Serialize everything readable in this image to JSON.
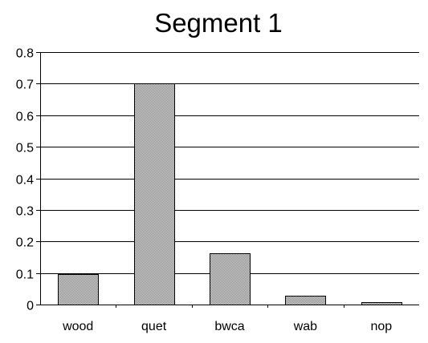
{
  "colors": {
    "bar_fill": "#bcbcbc",
    "bar_stroke": "#000000",
    "grid": "#000000",
    "background": "#ffffff"
  },
  "chart_data": {
    "type": "bar",
    "title": "Segment 1",
    "xlabel": "",
    "ylabel": "",
    "categories": [
      "wood",
      "quet",
      "bwca",
      "wab",
      "nop"
    ],
    "values": [
      0.096,
      0.702,
      0.163,
      0.028,
      0.008
    ],
    "ylim": [
      0,
      0.8
    ],
    "yticks": [
      0,
      0.1,
      0.2,
      0.3,
      0.4,
      0.5,
      0.6,
      0.7,
      0.8
    ],
    "ytick_labels": [
      "0",
      "0.1",
      "0.2",
      "0.3",
      "0.4",
      "0.5",
      "0.6",
      "0.7",
      "0.8"
    ],
    "grid": true,
    "legend": "none"
  }
}
